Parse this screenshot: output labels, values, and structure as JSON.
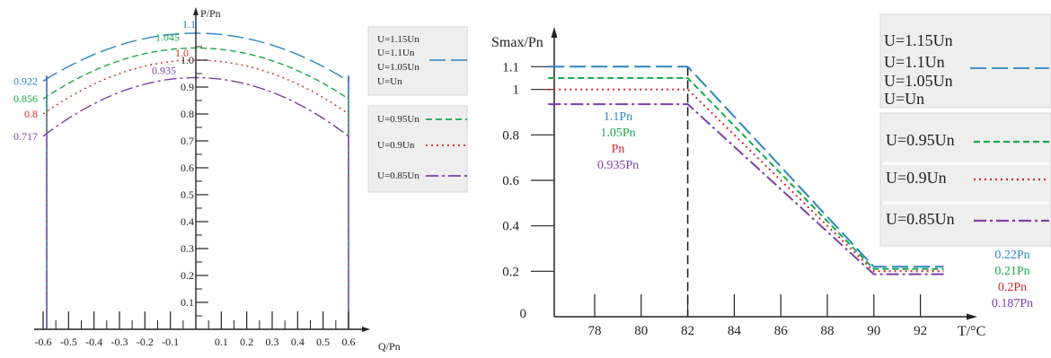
{
  "colors": {
    "u115": "#2E86C1",
    "u110": "#2E86C1",
    "u105": "#1DA84A",
    "u100": "#D62728",
    "u095": "#1DA84A",
    "u090": "#D62728",
    "u085": "#7B3FA6",
    "axis": "#222222",
    "legend_box": "#eeeeee"
  },
  "chart_data": [
    {
      "type": "line",
      "title": "",
      "xlabel": "Q/Pn",
      "ylabel": "P/Pn",
      "xlim": [
        -0.6,
        0.6
      ],
      "ylim": [
        0,
        1.1
      ],
      "x_ticks": [
        "-0.6",
        "-0.5",
        "-0.4",
        "-0.3",
        "-0.2",
        "-0.1",
        "0.1",
        "0.2",
        "0.3",
        "0.4",
        "0.5",
        "0.6"
      ],
      "y_ticks": [
        "0.1",
        "0.2",
        "0.3",
        "0.4",
        "0.5",
        "0.6",
        "0.7",
        "0.8",
        "0.9",
        "1.0"
      ],
      "series": [
        {
          "name": "U=1.15Un",
          "peak": 1.1,
          "edge": 0.922,
          "peak_label": "1.1",
          "edge_label": "0.922",
          "color": "#2E86C1",
          "style": "long-dash"
        },
        {
          "name": "U=1.1Un",
          "peak": 1.045,
          "edge": 0.856,
          "peak_label": "1.045",
          "edge_label": "0.856",
          "color": "#1DA84A",
          "style": "dash"
        },
        {
          "name": "U=1.05Un",
          "peak": 1.0,
          "edge": 0.8,
          "peak_label": "1.0",
          "edge_label": "0.8",
          "color": "#D62728",
          "style": "dot"
        },
        {
          "name": "U=Un",
          "peak": 0.935,
          "edge": 0.717,
          "peak_label": "0.935",
          "edge_label": "0.717",
          "color": "#7B3FA6",
          "style": "dash-dot"
        }
      ],
      "legend": {
        "group1": [
          "U=1.15Un",
          "U=1.1Un",
          "U=1.05Un",
          "U=Un"
        ],
        "group2": [
          "U=0.95Un",
          "U=0.9Un",
          "U=0.85Un"
        ]
      }
    },
    {
      "type": "line",
      "title": "",
      "xlabel": "T/°C",
      "ylabel": "Smax/Pn",
      "xlim": [
        76,
        94
      ],
      "ylim": [
        0,
        1.15
      ],
      "x_ticks": [
        "78",
        "80",
        "82",
        "84",
        "86",
        "88",
        "90",
        "92"
      ],
      "y_ticks": [
        "0",
        "0.2",
        "0.4",
        "0.6",
        "0.8",
        "1",
        "1.1"
      ],
      "series": [
        {
          "name": "1.1Pn",
          "points": [
            [
              76,
              1.1
            ],
            [
              82,
              1.1
            ],
            [
              90,
              0.22
            ],
            [
              93,
              0.22
            ]
          ],
          "end_label": "0.22Pn",
          "color": "#2E86C1",
          "style": "long-dash"
        },
        {
          "name": "1.05Pn",
          "points": [
            [
              76,
              1.05
            ],
            [
              82,
              1.05
            ],
            [
              90,
              0.21
            ],
            [
              93,
              0.21
            ]
          ],
          "end_label": "0.21Pn",
          "color": "#1DA84A",
          "style": "dash"
        },
        {
          "name": "Pn",
          "points": [
            [
              76,
              1.0
            ],
            [
              82,
              1.0
            ],
            [
              90,
              0.2
            ],
            [
              93,
              0.2
            ]
          ],
          "end_label": "0.2Pn",
          "color": "#D62728",
          "style": "dot"
        },
        {
          "name": "0.935Pn",
          "points": [
            [
              76,
              0.935
            ],
            [
              82,
              0.935
            ],
            [
              90,
              0.187
            ],
            [
              93,
              0.187
            ]
          ],
          "end_label": "0.187Pn",
          "color": "#7B3FA6",
          "style": "dash-dot"
        }
      ],
      "legend": {
        "group1": [
          "U=1.15Un",
          "U=1.1Un",
          "U=1.05Un",
          "U=Un"
        ],
        "group2": [
          "U=0.95Un",
          "U=0.9Un",
          "U=0.85Un"
        ]
      }
    }
  ]
}
